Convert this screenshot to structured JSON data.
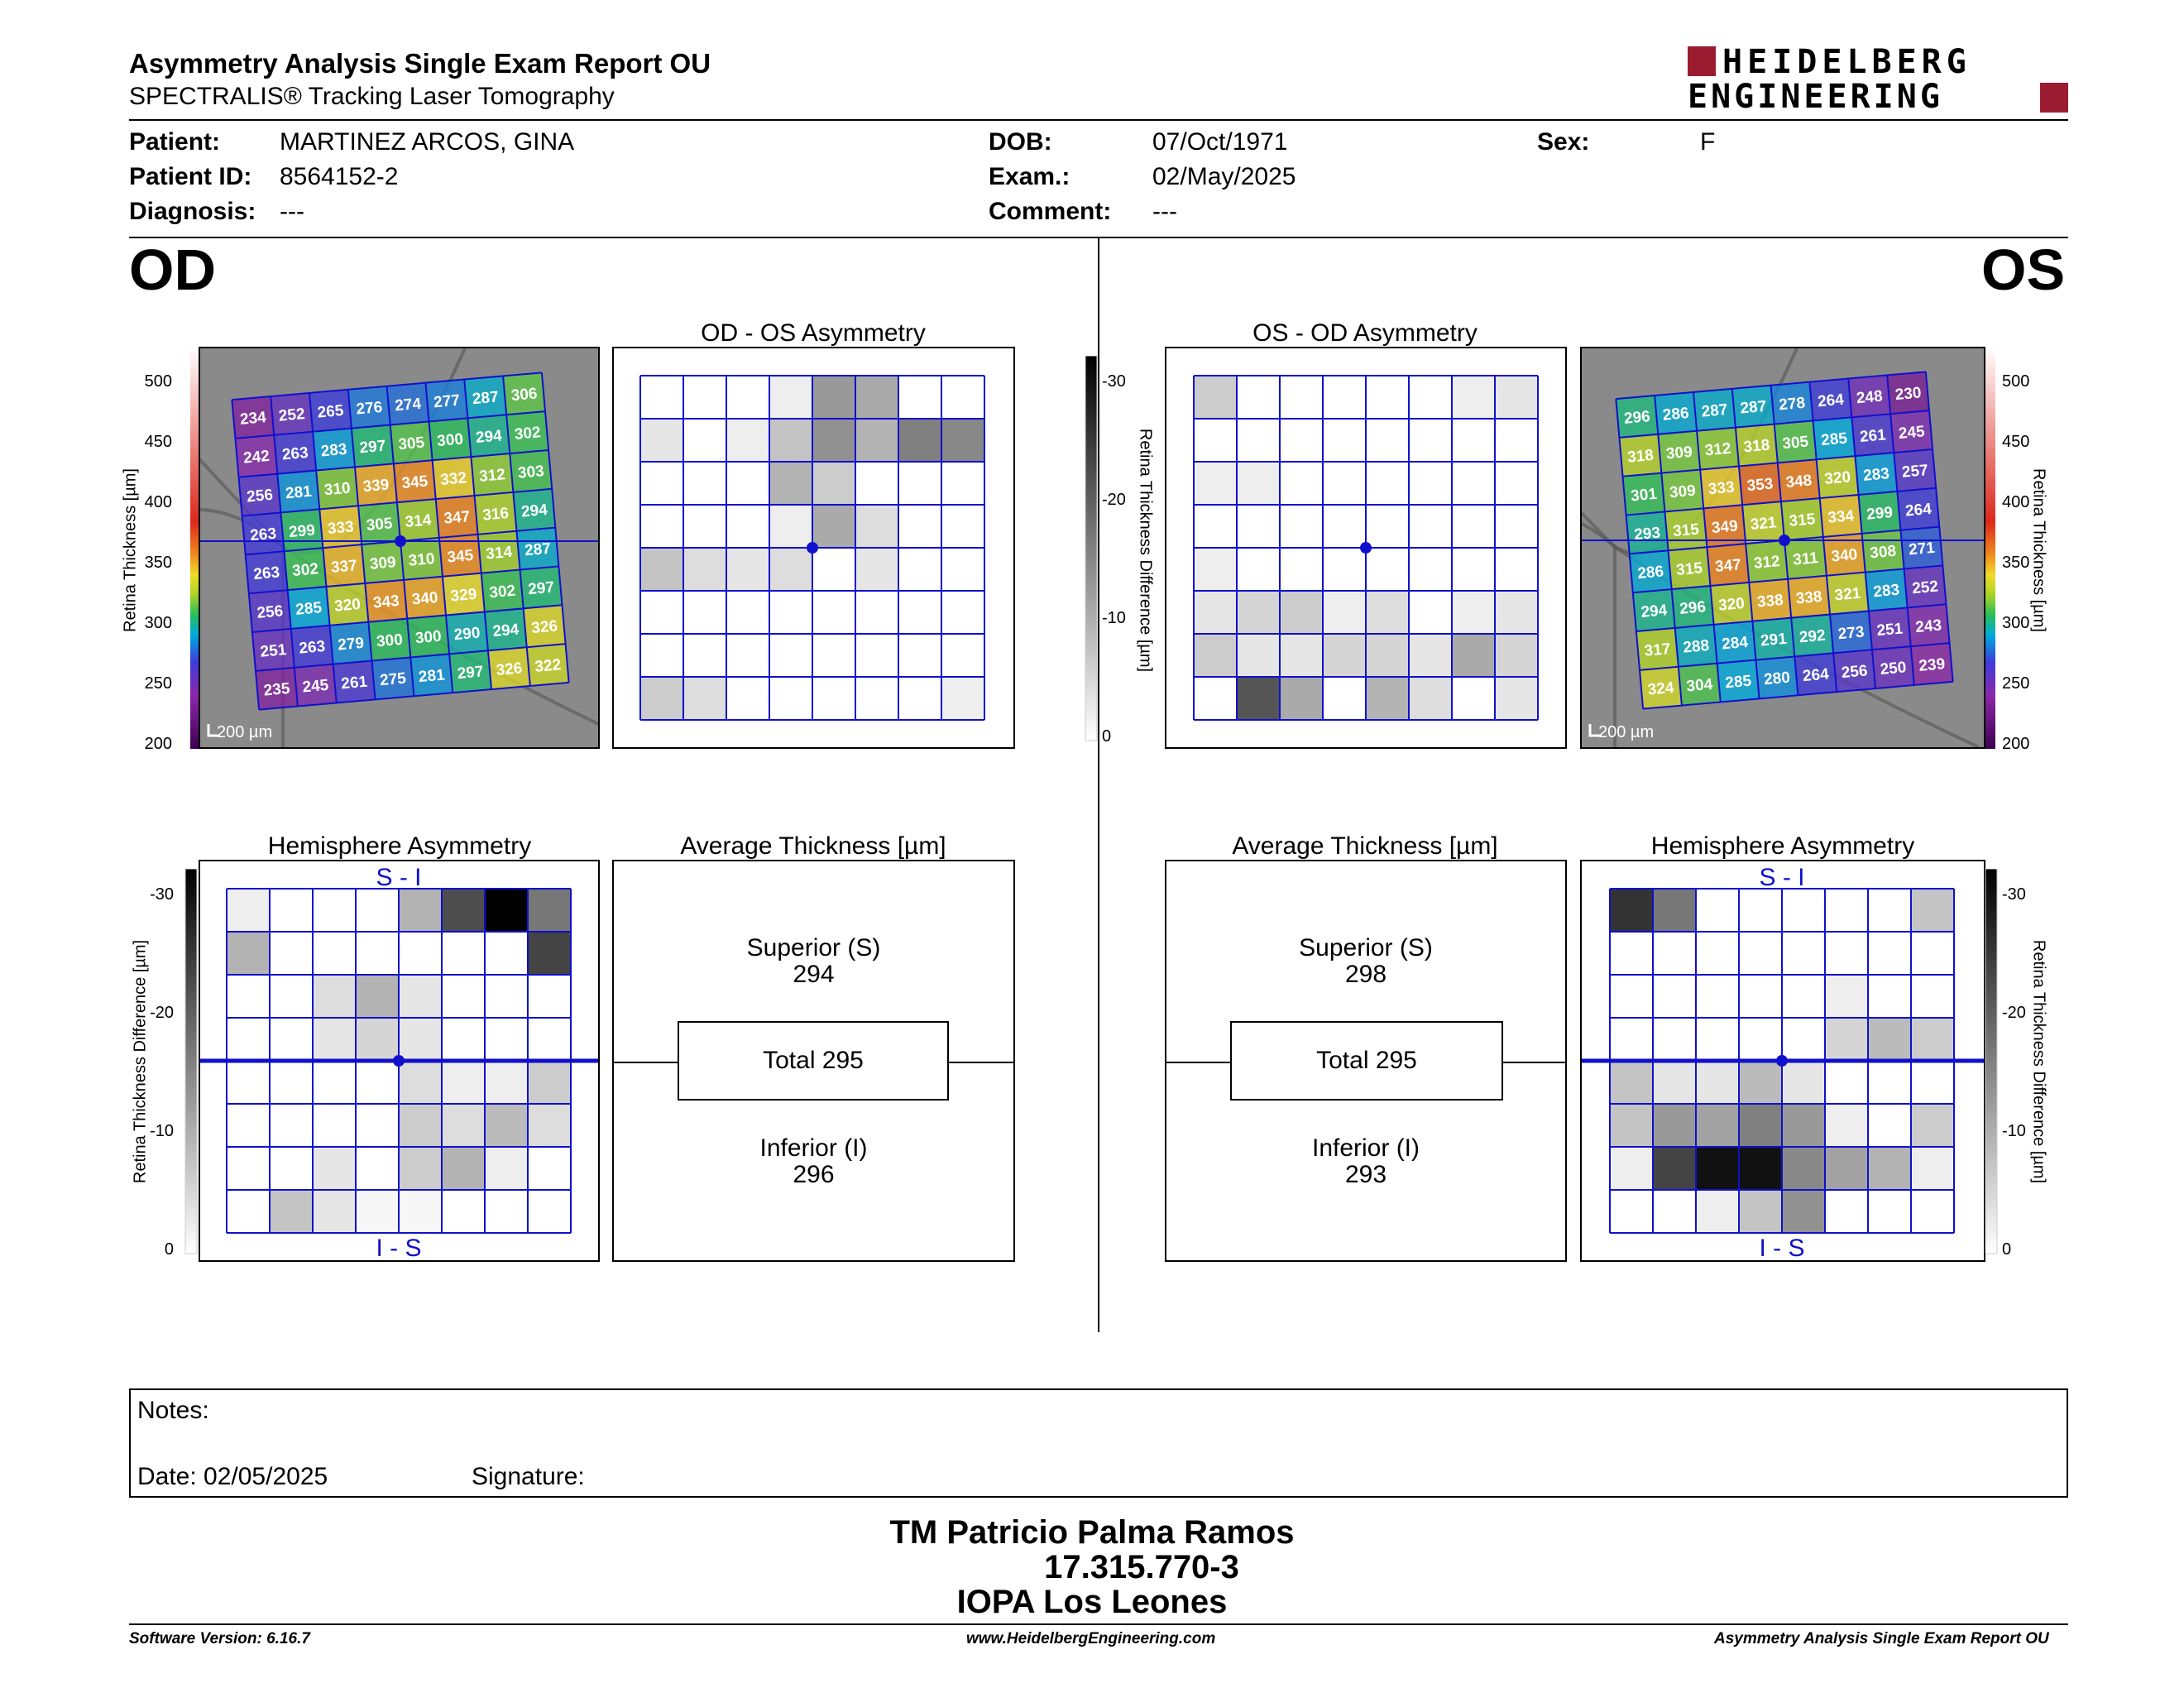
{
  "header": {
    "title": "Asymmetry Analysis Single Exam Report OU",
    "subtitle": "SPECTRALIS® Tracking Laser Tomography",
    "logo_line1": "HEIDELBERG",
    "logo_line2": "ENGINEERING",
    "logo_color": "#9b1b30"
  },
  "patient": {
    "patient_label": "Patient:",
    "patient_value": "MARTINEZ ARCOS, GINA",
    "id_label": "Patient ID:",
    "id_value": "8564152-2",
    "diagnosis_label": "Diagnosis:",
    "diagnosis_value": "---",
    "dob_label": "DOB:",
    "dob_value": "07/Oct/1971",
    "exam_label": "Exam.:",
    "exam_value": "02/May/2025",
    "comment_label": "Comment:",
    "comment_value": "---",
    "sex_label": "Sex:",
    "sex_value": "F"
  },
  "od": {
    "eye": "OD",
    "asym_title": "OD - OS Asymmetry",
    "hemi_title": "Hemisphere Asymmetry",
    "hemi_top": "S - I",
    "hemi_bottom": "I - S",
    "avg_title": "Average Thickness [µm]",
    "superior_label": "Superior (S)",
    "superior_value": "294",
    "total_label": "Total 295",
    "inferior_label": "Inferior (I)",
    "inferior_value": "296",
    "scale_text": "200 µm",
    "thickness_grid": [
      [
        234,
        252,
        265,
        276,
        274,
        277,
        287,
        306
      ],
      [
        242,
        263,
        283,
        297,
        305,
        300,
        294,
        302
      ],
      [
        256,
        281,
        310,
        339,
        345,
        332,
        312,
        303
      ],
      [
        263,
        299,
        333,
        305,
        314,
        347,
        316,
        294
      ],
      [
        263,
        302,
        337,
        309,
        310,
        345,
        314,
        287
      ],
      [
        256,
        285,
        320,
        343,
        340,
        329,
        302,
        297
      ],
      [
        251,
        263,
        279,
        300,
        300,
        290,
        294,
        326
      ],
      [
        235,
        245,
        261,
        275,
        281,
        297,
        326,
        322
      ]
    ],
    "asym_grid": [
      [
        0,
        0,
        0,
        2,
        12,
        10,
        0,
        0
      ],
      [
        3,
        0,
        2,
        7,
        13,
        9,
        15,
        14
      ],
      [
        0,
        0,
        0,
        9,
        6,
        0,
        0,
        0
      ],
      [
        0,
        0,
        0,
        2,
        10,
        4,
        0,
        0
      ],
      [
        7,
        4,
        3,
        4,
        0,
        3,
        0,
        0
      ],
      [
        0,
        0,
        0,
        0,
        0,
        0,
        0,
        0
      ],
      [
        0,
        0,
        0,
        0,
        0,
        0,
        0,
        0
      ],
      [
        6,
        4,
        0,
        0,
        0,
        0,
        0,
        2
      ]
    ],
    "hemi_grid": [
      [
        2,
        0,
        0,
        0,
        9,
        21,
        30,
        16
      ],
      [
        9,
        0,
        0,
        0,
        0,
        0,
        0,
        22
      ],
      [
        0,
        0,
        4,
        9,
        3,
        0,
        0,
        0
      ],
      [
        0,
        0,
        3,
        5,
        3,
        0,
        0,
        0
      ],
      [
        0,
        0,
        0,
        0,
        4,
        2,
        2,
        6
      ],
      [
        0,
        0,
        0,
        0,
        6,
        4,
        8,
        4
      ],
      [
        0,
        0,
        3,
        0,
        6,
        9,
        2,
        0
      ],
      [
        0,
        7,
        3,
        1,
        1,
        0,
        0,
        0
      ]
    ]
  },
  "os": {
    "eye": "OS",
    "asym_title": "OS - OD Asymmetry",
    "hemi_title": "Hemisphere Asymmetry",
    "hemi_top": "S - I",
    "hemi_bottom": "I - S",
    "avg_title": "Average Thickness [µm]",
    "superior_label": "Superior (S)",
    "superior_value": "298",
    "total_label": "Total 295",
    "inferior_label": "Inferior (I)",
    "inferior_value": "293",
    "scale_text": "200 µm",
    "thickness_grid": [
      [
        296,
        286,
        287,
        287,
        278,
        264,
        248,
        230
      ],
      [
        318,
        309,
        312,
        318,
        305,
        285,
        261,
        245
      ],
      [
        301,
        309,
        333,
        353,
        348,
        320,
        283,
        257
      ],
      [
        293,
        315,
        349,
        321,
        315,
        334,
        299,
        264
      ],
      [
        286,
        315,
        347,
        312,
        311,
        340,
        308,
        271
      ],
      [
        294,
        296,
        320,
        338,
        338,
        321,
        283,
        252
      ],
      [
        317,
        288,
        284,
        291,
        292,
        273,
        251,
        243
      ],
      [
        324,
        304,
        285,
        280,
        264,
        256,
        250,
        239
      ]
    ],
    "asym_grid": [
      [
        6,
        0,
        0,
        0,
        0,
        0,
        2,
        3
      ],
      [
        0,
        0,
        0,
        0,
        0,
        0,
        0,
        0
      ],
      [
        2,
        2,
        0,
        0,
        0,
        0,
        0,
        0
      ],
      [
        0,
        0,
        0,
        0,
        0,
        0,
        0,
        0
      ],
      [
        2,
        0,
        0,
        0,
        0,
        0,
        0,
        0
      ],
      [
        3,
        5,
        6,
        2,
        4,
        0,
        2,
        3
      ],
      [
        6,
        3,
        3,
        5,
        5,
        3,
        10,
        5
      ],
      [
        0,
        20,
        10,
        0,
        9,
        4,
        0,
        3
      ]
    ],
    "hemi_grid": [
      [
        24,
        16,
        0,
        0,
        0,
        0,
        0,
        7
      ],
      [
        0,
        0,
        0,
        0,
        0,
        0,
        0,
        0
      ],
      [
        0,
        0,
        0,
        0,
        0,
        2,
        0,
        0
      ],
      [
        0,
        0,
        0,
        0,
        0,
        5,
        8,
        6
      ],
      [
        7,
        3,
        3,
        8,
        3,
        0,
        0,
        0
      ],
      [
        7,
        12,
        11,
        15,
        12,
        2,
        0,
        6
      ],
      [
        2,
        22,
        28,
        28,
        14,
        11,
        9,
        2
      ],
      [
        0,
        0,
        2,
        7,
        13,
        0,
        0,
        0
      ]
    ]
  },
  "scales": {
    "thickness_axis_label": "Retina Thickness [µm]",
    "thickness_ticks": [
      "500",
      "450",
      "400",
      "350",
      "300",
      "250",
      "200"
    ],
    "diff_axis_label": "Retina Thickness Difference [µm]",
    "diff_ticks": [
      "-30",
      "-20",
      "-10",
      "0"
    ]
  },
  "notes": {
    "notes_label": "Notes:",
    "date_label": "Date: 02/05/2025",
    "signature_label": "Signature:"
  },
  "signature_block": {
    "name": "TM Patricio Palma Ramos",
    "rut": "17.315.770-3",
    "clinic": "IOPA Los Leones"
  },
  "footer": {
    "software": "Software Version: 6.16.7",
    "website": "www.HeidelbergEngineering.com",
    "report_name": "Asymmetry Analysis Single Exam Report OU"
  },
  "colors": {
    "grid_blue": "#1010cc",
    "text_white": "#ffffff"
  }
}
